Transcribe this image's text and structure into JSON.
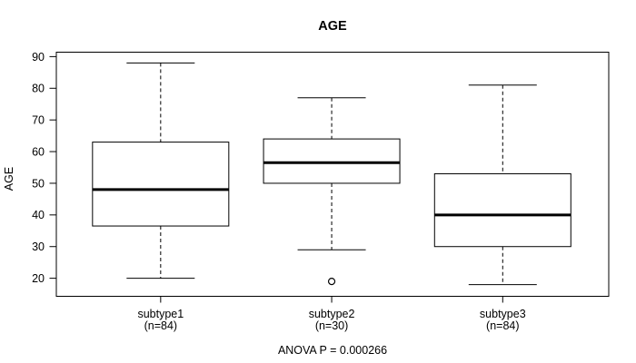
{
  "chart_data": {
    "type": "boxplot",
    "title": "AGE",
    "ylabel": "AGE",
    "xlabel": "",
    "footer": "ANOVA P = 0.000266",
    "y_ticks": [
      20,
      30,
      40,
      50,
      60,
      70,
      80,
      90
    ],
    "ylim": [
      14.3,
      91.4
    ],
    "grid": false,
    "legend": "none",
    "colors": {
      "line": "#000000",
      "median": "#000000",
      "box_fill": "#ffffff",
      "background": "#ffffff",
      "text": "#000000"
    },
    "categories": [
      {
        "label": "subtype1",
        "sublabel": "(n=84)"
      },
      {
        "label": "subtype2",
        "sublabel": "(n=30)"
      },
      {
        "label": "subtype3",
        "sublabel": "(n=84)"
      }
    ],
    "series": [
      {
        "name": "subtype1",
        "n": 84,
        "whisker_low": 20,
        "q1": 36.5,
        "median": 48,
        "q3": 63,
        "whisker_high": 88,
        "outliers": []
      },
      {
        "name": "subtype2",
        "n": 30,
        "whisker_low": 29,
        "q1": 50,
        "median": 56.5,
        "q3": 64,
        "whisker_high": 77,
        "outliers": [
          19
        ]
      },
      {
        "name": "subtype3",
        "n": 84,
        "whisker_low": 18,
        "q1": 30,
        "median": 40,
        "q3": 53,
        "whisker_high": 81,
        "outliers": []
      }
    ]
  }
}
